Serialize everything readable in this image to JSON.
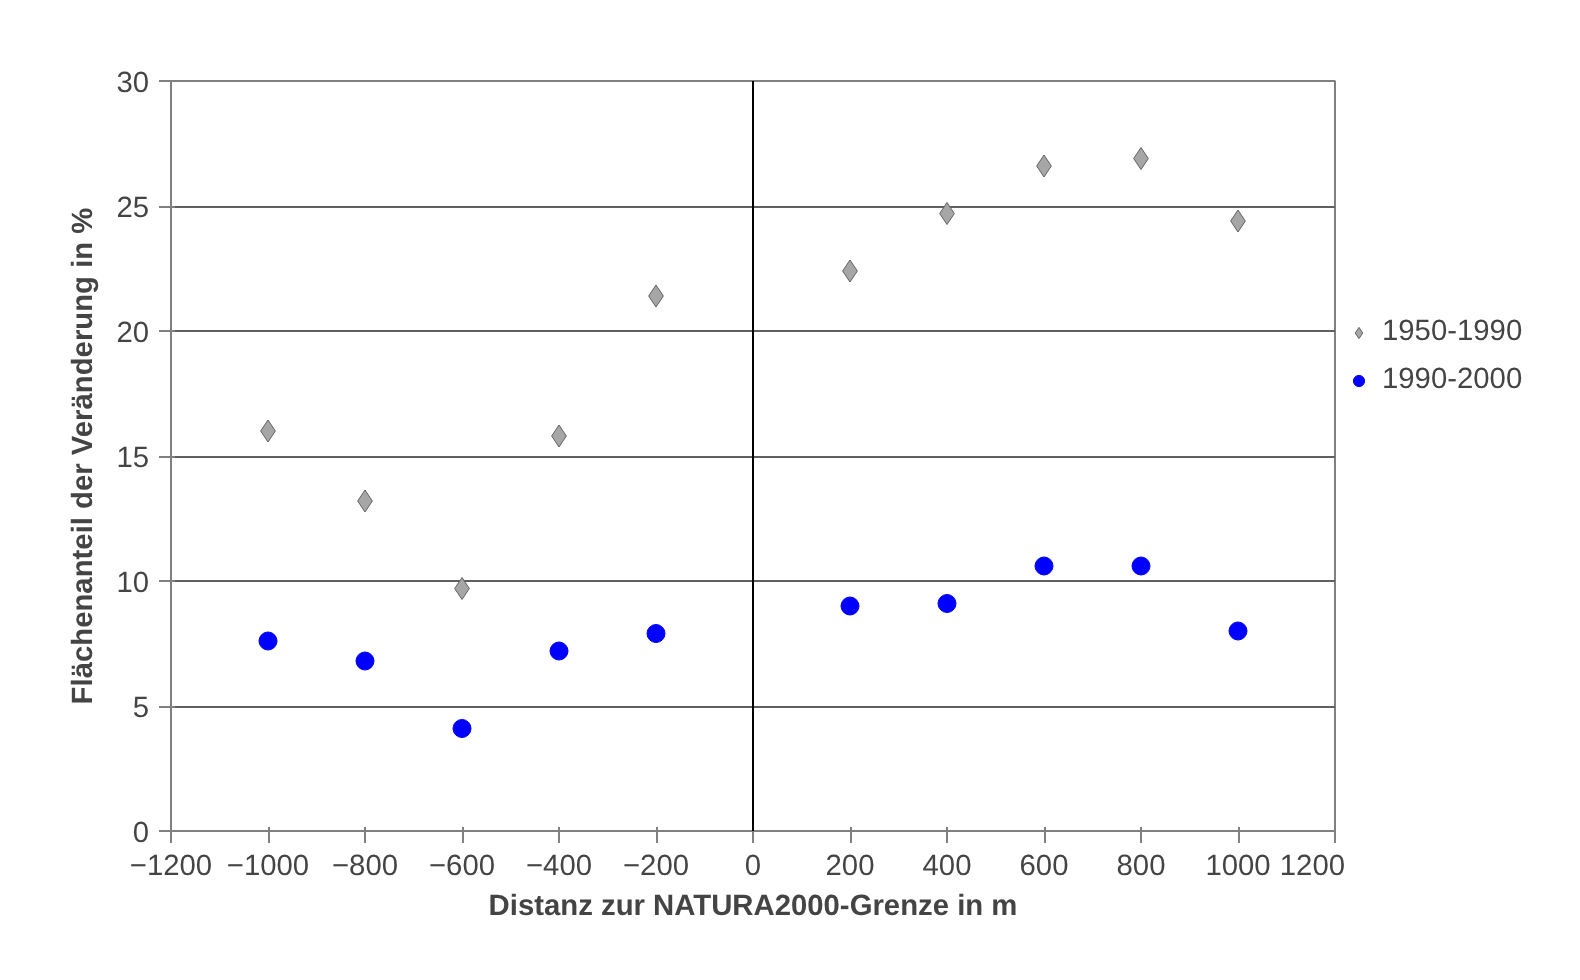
{
  "chart_data": {
    "type": "scatter",
    "xlabel": "Distanz zur NATURA2000-Grenze in m",
    "ylabel": "Flächenanteil der Veränderung in %",
    "x": [
      -1000,
      -800,
      -600,
      -400,
      -200,
      200,
      400,
      600,
      800,
      1000
    ],
    "series": [
      {
        "name": "1950-1990",
        "color": "#a6a6a6",
        "marker": "diamond",
        "values": [
          16.0,
          13.2,
          9.7,
          15.8,
          21.4,
          22.4,
          24.7,
          26.6,
          26.9,
          24.4
        ]
      },
      {
        "name": "1990-2000",
        "color": "#0000ff",
        "marker": "circle",
        "values": [
          7.6,
          6.8,
          4.1,
          7.2,
          7.9,
          9.0,
          9.1,
          10.6,
          10.6,
          8.0
        ]
      }
    ],
    "xlim": [
      -1200,
      1200
    ],
    "xticks": [
      -1200,
      -1000,
      -800,
      -600,
      -400,
      -200,
      0,
      200,
      400,
      600,
      800,
      1000,
      1200
    ],
    "ylim": [
      0,
      30
    ],
    "yticks": [
      0,
      5,
      10,
      15,
      20,
      25,
      30
    ],
    "ref_lines": [
      {
        "axis": "x",
        "value": 0,
        "color": "#000000"
      }
    ],
    "grid": "y",
    "legend": "right"
  }
}
